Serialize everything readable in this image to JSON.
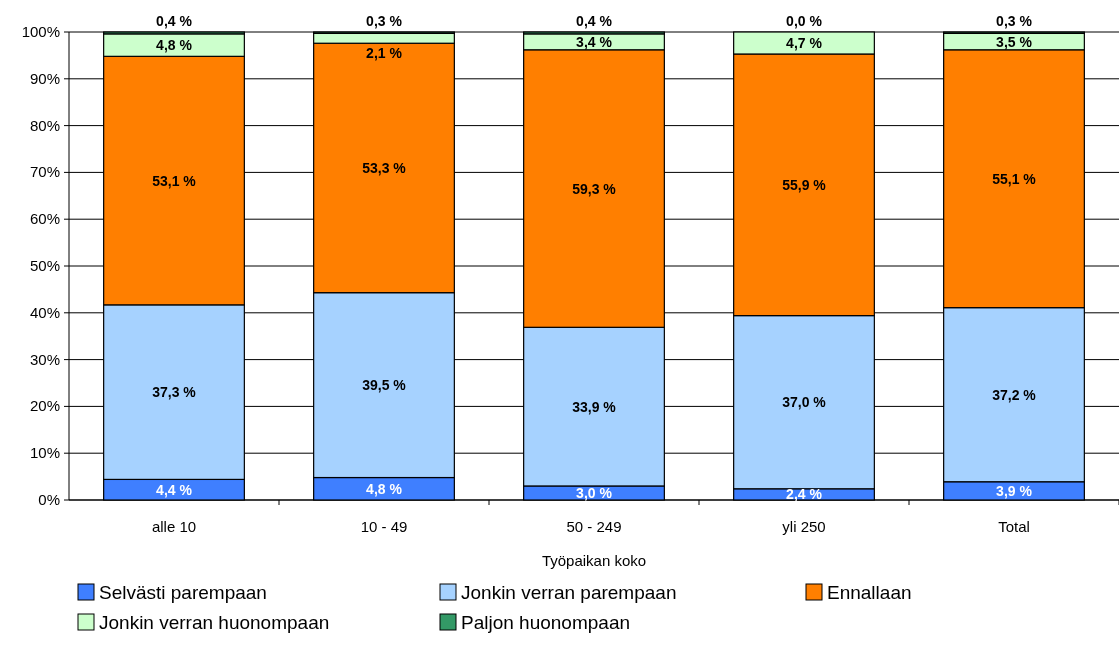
{
  "chart_data": {
    "type": "bar",
    "stacked": true,
    "xlabel": "Työpaikan koko",
    "categories": [
      "alle 10",
      "10 - 49",
      "50 - 249",
      "yli 250",
      "Total"
    ],
    "series": [
      {
        "name": "Selvästi parempaan",
        "color": "#3f7fff",
        "values": [
          4.4,
          4.8,
          3.0,
          2.4,
          3.9
        ],
        "value_labels": [
          "4,4 %",
          "4,8 %",
          "3,0 %",
          "2,4 %",
          "3,9 %"
        ]
      },
      {
        "name": "Jonkin verran parempaan",
        "color": "#a6d2ff",
        "values": [
          37.3,
          39.5,
          33.9,
          37.0,
          37.2
        ],
        "value_labels": [
          "37,3 %",
          "39,5 %",
          "33,9 %",
          "37,0 %",
          "37,2 %"
        ]
      },
      {
        "name": "Ennallaan",
        "color": "#ff7f00",
        "values": [
          53.1,
          53.3,
          59.3,
          55.9,
          55.1
        ],
        "value_labels": [
          "53,1 %",
          "53,3 %",
          "59,3 %",
          "55,9 %",
          "55,1 %"
        ]
      },
      {
        "name": "Jonkin verran huonompaan",
        "color": "#ccffcc",
        "values": [
          4.8,
          2.1,
          3.4,
          4.7,
          3.5
        ],
        "value_labels": [
          "4,8 %",
          "2,1 %",
          "3,4 %",
          "4,7 %",
          "3,5 %"
        ]
      },
      {
        "name": "Paljon huonompaan",
        "color": "#339966",
        "values": [
          0.4,
          0.3,
          0.4,
          0.0,
          0.3
        ],
        "value_labels": [
          "0,4 %",
          "0,3 %",
          "0,4 %",
          "0,0 %",
          "0,3 %"
        ]
      }
    ],
    "ylim": [
      0,
      100
    ],
    "yticks": [
      {
        "value": 0,
        "label": "0%"
      },
      {
        "value": 10,
        "label": "10%"
      },
      {
        "value": 20,
        "label": "20%"
      },
      {
        "value": 30,
        "label": "30%"
      },
      {
        "value": 40,
        "label": "40%"
      },
      {
        "value": 50,
        "label": "50%"
      },
      {
        "value": 60,
        "label": "60%"
      },
      {
        "value": 70,
        "label": "70%"
      },
      {
        "value": 80,
        "label": "80%"
      },
      {
        "value": 90,
        "label": "90%"
      },
      {
        "value": 100,
        "label": "100%"
      }
    ],
    "grid": "y",
    "legend": "bottom"
  }
}
